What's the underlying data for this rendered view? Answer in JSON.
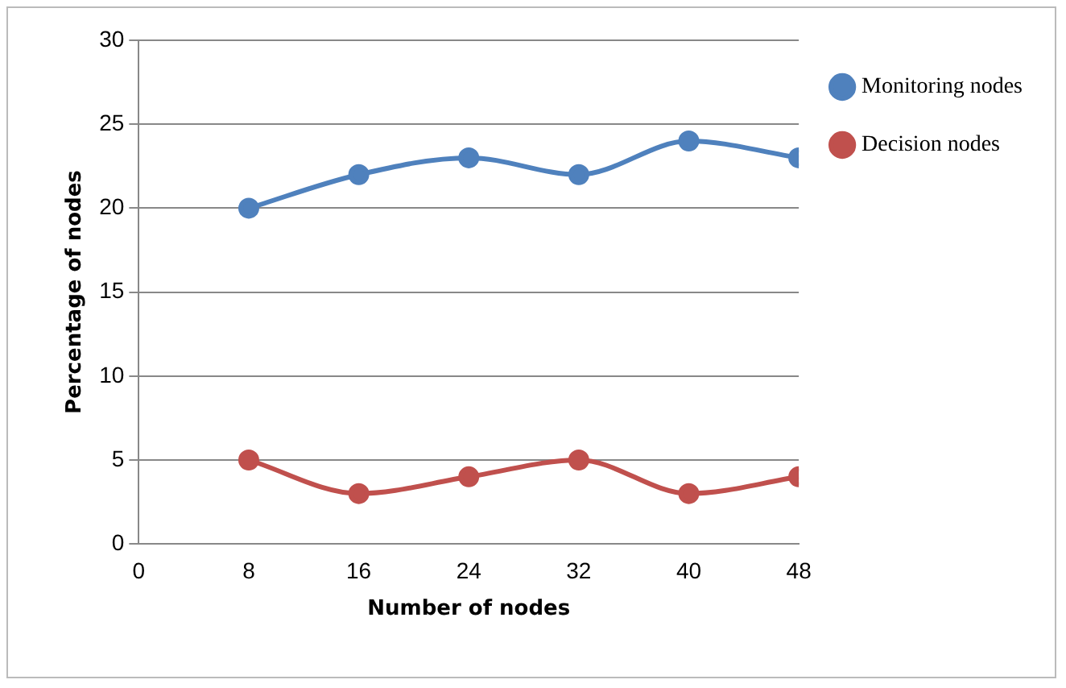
{
  "chart_data": {
    "type": "line",
    "xlabel": "Number of nodes",
    "ylabel": "Percentage of nodes",
    "x": [
      8,
      16,
      24,
      32,
      40,
      48
    ],
    "series": [
      {
        "name": "Monitoring nodes",
        "color": "#4f81bd",
        "values": [
          20,
          22,
          23,
          22,
          24,
          23
        ]
      },
      {
        "name": "Decision nodes",
        "color": "#c0504d",
        "values": [
          5,
          3,
          4,
          5,
          3,
          4
        ]
      }
    ],
    "xlim": [
      0,
      48
    ],
    "xticks": [
      0,
      8,
      16,
      24,
      32,
      40,
      48
    ],
    "ylim": [
      0,
      30
    ],
    "yticks": [
      0,
      5,
      10,
      15,
      20,
      25,
      30
    ],
    "grid": "y",
    "legend": "top right",
    "marker": "circle",
    "line_style": "solid"
  }
}
